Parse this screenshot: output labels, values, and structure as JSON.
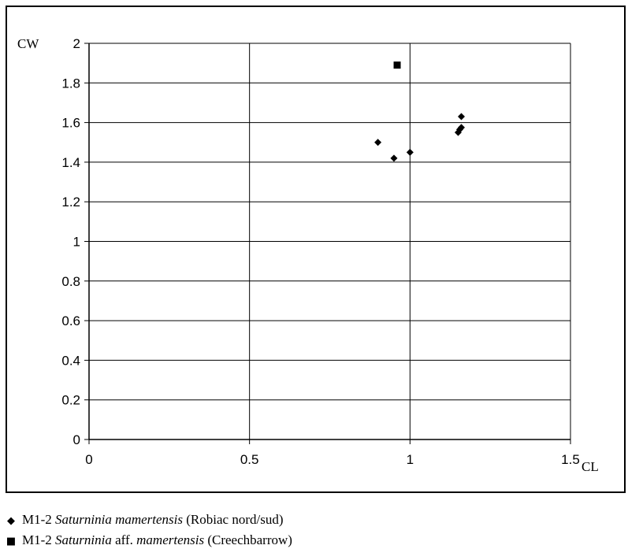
{
  "chart_data": {
    "type": "scatter",
    "xlabel": "CL",
    "ylabel": "CW",
    "xlim": [
      0,
      1.5
    ],
    "ylim": [
      0,
      2
    ],
    "x_ticks": [
      "0",
      "0.5",
      "1",
      "1.5"
    ],
    "y_ticks": [
      "0",
      "0.2",
      "0.4",
      "0.6",
      "0.8",
      "1",
      "1.2",
      "1.4",
      "1.6",
      "1.8",
      "2"
    ],
    "grid": true,
    "legend_position": "below",
    "series": [
      {
        "name_parts": [
          "M1-2 ",
          "Saturninia mamertensis",
          " (Robiac nord/sud)"
        ],
        "marker": "diamond",
        "color": "#000000",
        "points": [
          {
            "x": 0.9,
            "y": 1.5
          },
          {
            "x": 0.95,
            "y": 1.42
          },
          {
            "x": 1.0,
            "y": 1.45
          },
          {
            "x": 1.15,
            "y": 1.55
          },
          {
            "x": 1.155,
            "y": 1.565
          },
          {
            "x": 1.16,
            "y": 1.575
          },
          {
            "x": 1.16,
            "y": 1.63
          }
        ]
      },
      {
        "name_parts": [
          "M1-2 ",
          "Saturninia",
          " aff. ",
          "mamertensis",
          " (Creechbarrow)"
        ],
        "marker": "square",
        "color": "#000000",
        "points": [
          {
            "x": 0.96,
            "y": 1.89
          }
        ]
      }
    ]
  },
  "legend": {
    "diamond_icon": "◆",
    "square_icon": "■"
  }
}
